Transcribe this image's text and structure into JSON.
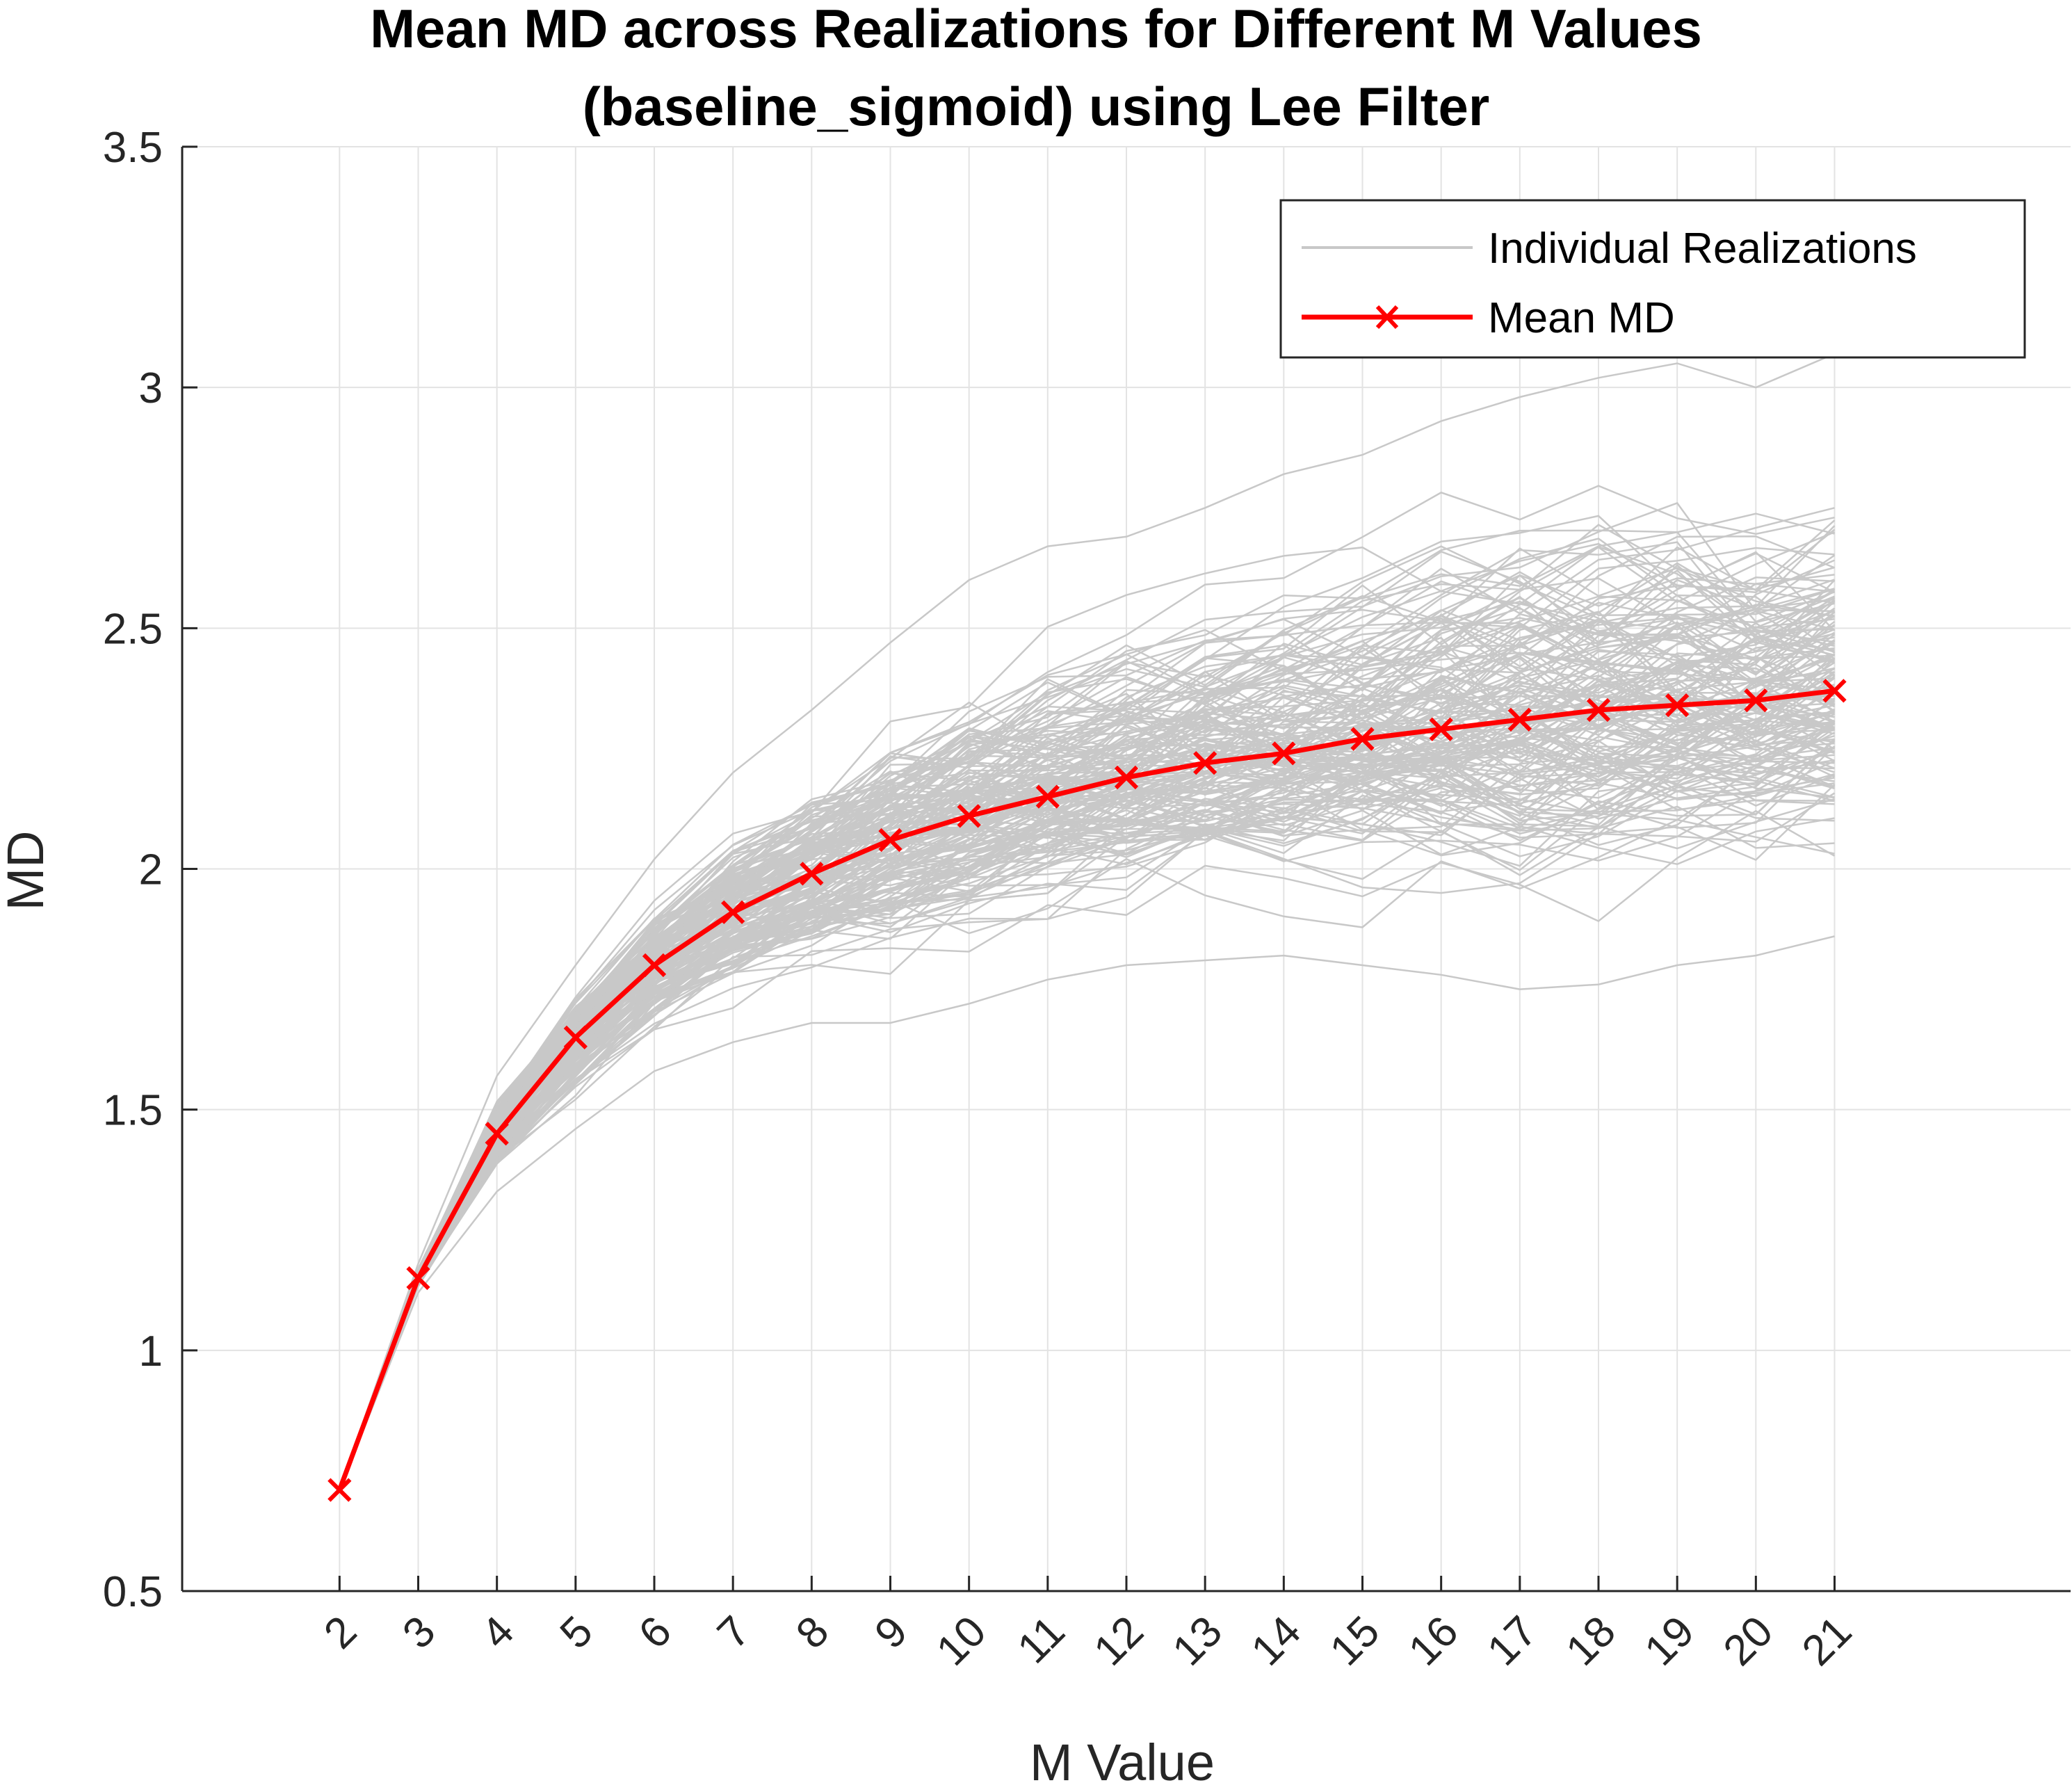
{
  "chart_data": {
    "type": "line",
    "title": "Mean MD across Realizations for Different M Values",
    "subtitle": "(baseline_sigmoid) using Lee Filter",
    "xlabel": "M Value",
    "ylabel": "MD",
    "x": [
      2,
      3,
      4,
      5,
      6,
      7,
      8,
      9,
      10,
      11,
      12,
      13,
      14,
      15,
      16,
      17,
      18,
      19,
      20,
      21
    ],
    "x_tick_labels": [
      "2",
      "3",
      "4",
      "5",
      "6",
      "7",
      "8",
      "9",
      "10",
      "11",
      "12",
      "13",
      "14",
      "15",
      "16",
      "17",
      "18",
      "19",
      "20",
      "21"
    ],
    "xlim": [
      0,
      24
    ],
    "ylim": [
      0.5,
      3.5
    ],
    "y_ticks": [
      0.5,
      1,
      1.5,
      2,
      2.5,
      3,
      3.5
    ],
    "y_tick_labels": [
      "0.5",
      "1",
      "1.5",
      "2",
      "2.5",
      "3",
      "3.5"
    ],
    "grid": true,
    "legend_position": "top-right",
    "series": [
      {
        "name": "Individual Realizations",
        "color": "#c8c8c8",
        "kind": "band",
        "lower_envelope": [
          0.71,
          1.12,
          1.33,
          1.46,
          1.58,
          1.64,
          1.68,
          1.68,
          1.72,
          1.77,
          1.8,
          1.81,
          1.82,
          1.8,
          1.78,
          1.75,
          1.76,
          1.8,
          1.82,
          1.86
        ],
        "upper_envelope": [
          0.71,
          1.18,
          1.57,
          1.8,
          2.02,
          2.2,
          2.33,
          2.47,
          2.6,
          2.67,
          2.69,
          2.75,
          2.82,
          2.86,
          2.93,
          2.98,
          3.02,
          3.05,
          3.0,
          3.07
        ]
      },
      {
        "name": "Mean MD",
        "color": "#ff0000",
        "marker": "x",
        "values": [
          0.71,
          1.15,
          1.45,
          1.65,
          1.8,
          1.91,
          1.99,
          2.06,
          2.11,
          2.15,
          2.19,
          2.22,
          2.24,
          2.27,
          2.29,
          2.31,
          2.33,
          2.34,
          2.35,
          2.37
        ]
      }
    ]
  }
}
